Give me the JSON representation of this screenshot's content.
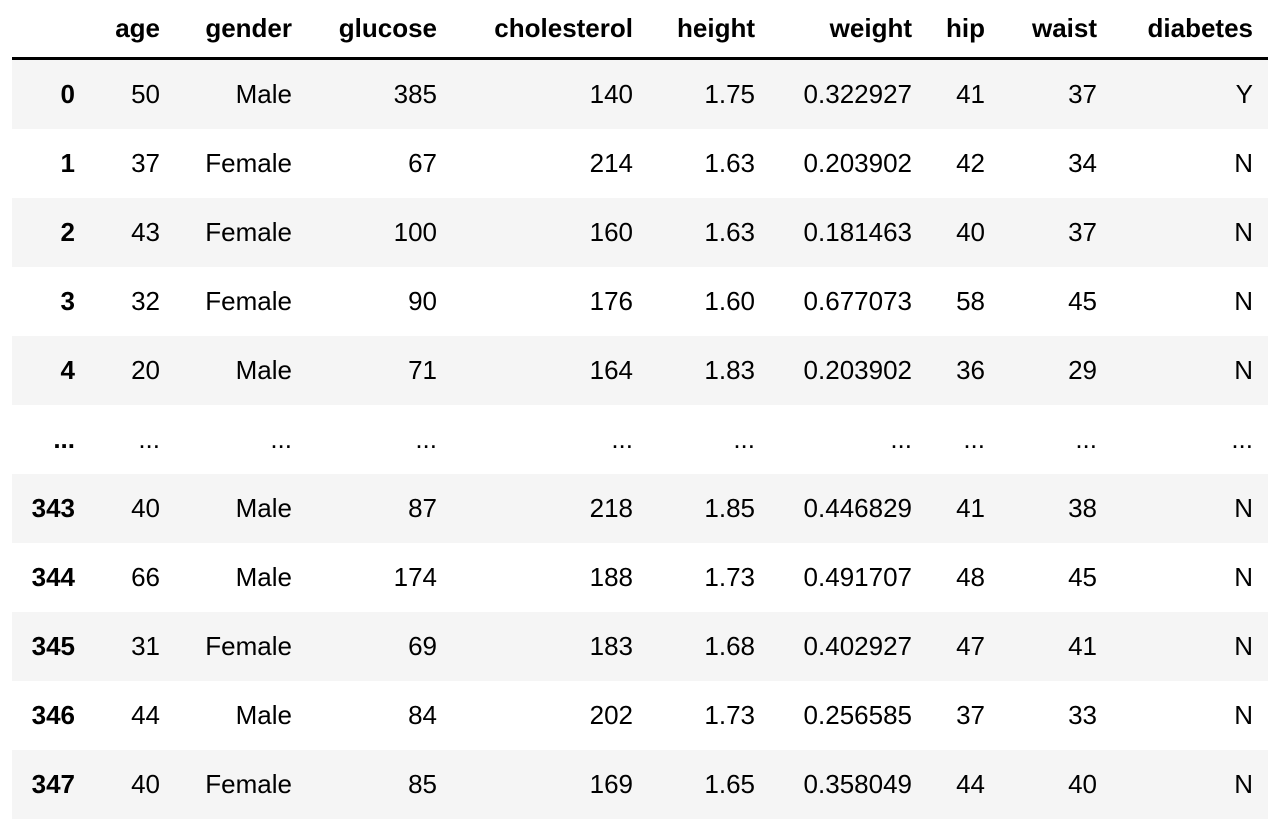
{
  "chart_data": {
    "type": "table",
    "title": "",
    "columns": [
      "",
      "age",
      "gender",
      "glucose",
      "cholesterol",
      "height",
      "weight",
      "hip",
      "waist",
      "diabetes"
    ],
    "rows": [
      {
        "index": "0",
        "values": [
          "50",
          "Male",
          "385",
          "140",
          "1.75",
          "0.322927",
          "41",
          "37",
          "Y"
        ]
      },
      {
        "index": "1",
        "values": [
          "37",
          "Female",
          "67",
          "214",
          "1.63",
          "0.203902",
          "42",
          "34",
          "N"
        ]
      },
      {
        "index": "2",
        "values": [
          "43",
          "Female",
          "100",
          "160",
          "1.63",
          "0.181463",
          "40",
          "37",
          "N"
        ]
      },
      {
        "index": "3",
        "values": [
          "32",
          "Female",
          "90",
          "176",
          "1.60",
          "0.677073",
          "58",
          "45",
          "N"
        ]
      },
      {
        "index": "4",
        "values": [
          "20",
          "Male",
          "71",
          "164",
          "1.83",
          "0.203902",
          "36",
          "29",
          "N"
        ]
      },
      {
        "index": "...",
        "values": [
          "...",
          "...",
          "...",
          "...",
          "...",
          "...",
          "...",
          "...",
          "..."
        ]
      },
      {
        "index": "343",
        "values": [
          "40",
          "Male",
          "87",
          "218",
          "1.85",
          "0.446829",
          "41",
          "38",
          "N"
        ]
      },
      {
        "index": "344",
        "values": [
          "66",
          "Male",
          "174",
          "188",
          "1.73",
          "0.491707",
          "48",
          "45",
          "N"
        ]
      },
      {
        "index": "345",
        "values": [
          "31",
          "Female",
          "69",
          "183",
          "1.68",
          "0.402927",
          "47",
          "41",
          "N"
        ]
      },
      {
        "index": "346",
        "values": [
          "44",
          "Male",
          "84",
          "202",
          "1.73",
          "0.256585",
          "37",
          "33",
          "N"
        ]
      },
      {
        "index": "347",
        "values": [
          "40",
          "Female",
          "85",
          "169",
          "1.65",
          "0.358049",
          "44",
          "40",
          "N"
        ]
      }
    ],
    "layout_hints": {
      "row_striping": "odd-rows-gray-starting-with-first",
      "alignment": "right",
      "header_rule": "thick-black-bottom-border",
      "grid": "off"
    },
    "colors": {
      "stripe_background": "#f5f5f5",
      "row_background": "#ffffff",
      "text": "#000000",
      "header_border": "#000000"
    }
  }
}
